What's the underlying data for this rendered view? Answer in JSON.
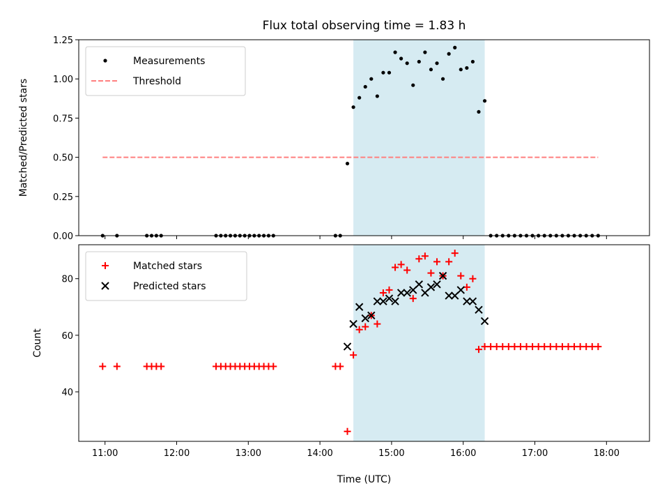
{
  "chart_data": [
    {
      "type": "scatter",
      "title": "Flux total observing time = 1.83 h",
      "ylabel": "Matched/Predicted stars",
      "xlabel": "",
      "xlim": [
        "10:38",
        "18:36"
      ],
      "ylim": [
        0,
        1.25
      ],
      "yticks": [
        "0.00",
        "0.25",
        "0.50",
        "0.75",
        "1.00",
        "1.25"
      ],
      "shaded_span": [
        "14:28",
        "16:18"
      ],
      "shade_color": "#add8e6",
      "legend_position": "top-left",
      "series": [
        {
          "name": "Measurements",
          "marker": "dot",
          "color": "#000000",
          "x": [
            "10:58",
            "11:10",
            "11:35",
            "11:39",
            "11:43",
            "11:47",
            "12:33",
            "12:37",
            "12:41",
            "12:45",
            "12:49",
            "12:53",
            "12:57",
            "13:01",
            "13:05",
            "13:09",
            "13:13",
            "13:17",
            "13:21",
            "14:13",
            "14:17",
            "14:23",
            "14:28",
            "14:33",
            "14:38",
            "14:43",
            "14:48",
            "14:53",
            "14:58",
            "15:03",
            "15:08",
            "15:13",
            "15:18",
            "15:23",
            "15:28",
            "15:33",
            "15:38",
            "15:43",
            "15:48",
            "15:53",
            "15:58",
            "16:03",
            "16:08",
            "16:13",
            "16:18",
            "16:23",
            "16:28",
            "16:33",
            "16:38",
            "16:43",
            "16:48",
            "16:53",
            "16:58",
            "17:03",
            "17:08",
            "17:13",
            "17:18",
            "17:23",
            "17:28",
            "17:33",
            "17:38",
            "17:43",
            "17:48",
            "17:53"
          ],
          "y": [
            0,
            0,
            0,
            0,
            0,
            0,
            0,
            0,
            0,
            0,
            0,
            0,
            0,
            0,
            0,
            0,
            0,
            0,
            0,
            0,
            0,
            0.46,
            0.82,
            0.88,
            0.95,
            1.0,
            0.89,
            1.04,
            1.04,
            1.17,
            1.13,
            1.1,
            0.96,
            1.11,
            1.17,
            1.06,
            1.1,
            1.0,
            1.16,
            1.2,
            1.06,
            1.07,
            1.11,
            0.79,
            0.86,
            0,
            0,
            0,
            0,
            0,
            0,
            0,
            0,
            0,
            0,
            0,
            0,
            0,
            0,
            0,
            0,
            0,
            0,
            0
          ]
        },
        {
          "name": "Threshold",
          "marker": "dashed-line",
          "color": "#ff7f7f",
          "x": [
            "10:58",
            "17:53"
          ],
          "y": [
            0.5,
            0.5
          ]
        }
      ]
    },
    {
      "type": "scatter",
      "title": "",
      "ylabel": "Count",
      "xlabel": "Time (UTC)",
      "xlim": [
        "10:38",
        "18:36"
      ],
      "ylim": [
        22.5,
        92
      ],
      "yticks": [
        "40",
        "60",
        "80"
      ],
      "xticks": [
        "11:00",
        "12:00",
        "13:00",
        "14:00",
        "15:00",
        "16:00",
        "17:00",
        "18:00"
      ],
      "shaded_span": [
        "14:28",
        "16:18"
      ],
      "shade_color": "#add8e6",
      "legend_position": "top-left",
      "series": [
        {
          "name": "Matched stars",
          "marker": "plus",
          "color": "#ff0000",
          "x": [
            "10:58",
            "11:10",
            "11:35",
            "11:39",
            "11:43",
            "11:47",
            "12:33",
            "12:37",
            "12:41",
            "12:45",
            "12:49",
            "12:53",
            "12:57",
            "13:01",
            "13:05",
            "13:09",
            "13:13",
            "13:17",
            "13:21",
            "14:13",
            "14:17",
            "14:23",
            "14:28",
            "14:33",
            "14:38",
            "14:43",
            "14:48",
            "14:53",
            "14:58",
            "15:03",
            "15:08",
            "15:13",
            "15:18",
            "15:23",
            "15:28",
            "15:33",
            "15:38",
            "15:43",
            "15:48",
            "15:53",
            "15:58",
            "16:03",
            "16:08",
            "16:13",
            "16:18",
            "16:23",
            "16:28",
            "16:33",
            "16:38",
            "16:43",
            "16:48",
            "16:53",
            "16:58",
            "17:03",
            "17:08",
            "17:13",
            "17:18",
            "17:23",
            "17:28",
            "17:33",
            "17:38",
            "17:43",
            "17:48",
            "17:53"
          ],
          "y": [
            49,
            49,
            49,
            49,
            49,
            49,
            49,
            49,
            49,
            49,
            49,
            49,
            49,
            49,
            49,
            49,
            49,
            49,
            49,
            49,
            49,
            26,
            53,
            62,
            63,
            67,
            64,
            75,
            76,
            84,
            85,
            83,
            73,
            87,
            88,
            82,
            86,
            81,
            86,
            89,
            81,
            77,
            80,
            55,
            56,
            56,
            56,
            56,
            56,
            56,
            56,
            56,
            56,
            56,
            56,
            56,
            56,
            56,
            56,
            56,
            56,
            56,
            56,
            56
          ]
        },
        {
          "name": "Predicted stars",
          "marker": "x",
          "color": "#000000",
          "x": [
            "14:23",
            "14:28",
            "14:33",
            "14:38",
            "14:43",
            "14:48",
            "14:53",
            "14:58",
            "15:03",
            "15:08",
            "15:13",
            "15:18",
            "15:23",
            "15:28",
            "15:33",
            "15:38",
            "15:43",
            "15:48",
            "15:53",
            "15:58",
            "16:03",
            "16:08",
            "16:13",
            "16:18"
          ],
          "y": [
            56,
            64,
            70,
            66,
            67,
            72,
            72,
            73,
            72,
            75,
            75,
            76,
            78,
            75,
            77,
            78,
            81,
            74,
            74,
            76,
            72,
            72,
            69,
            65
          ]
        }
      ]
    }
  ]
}
